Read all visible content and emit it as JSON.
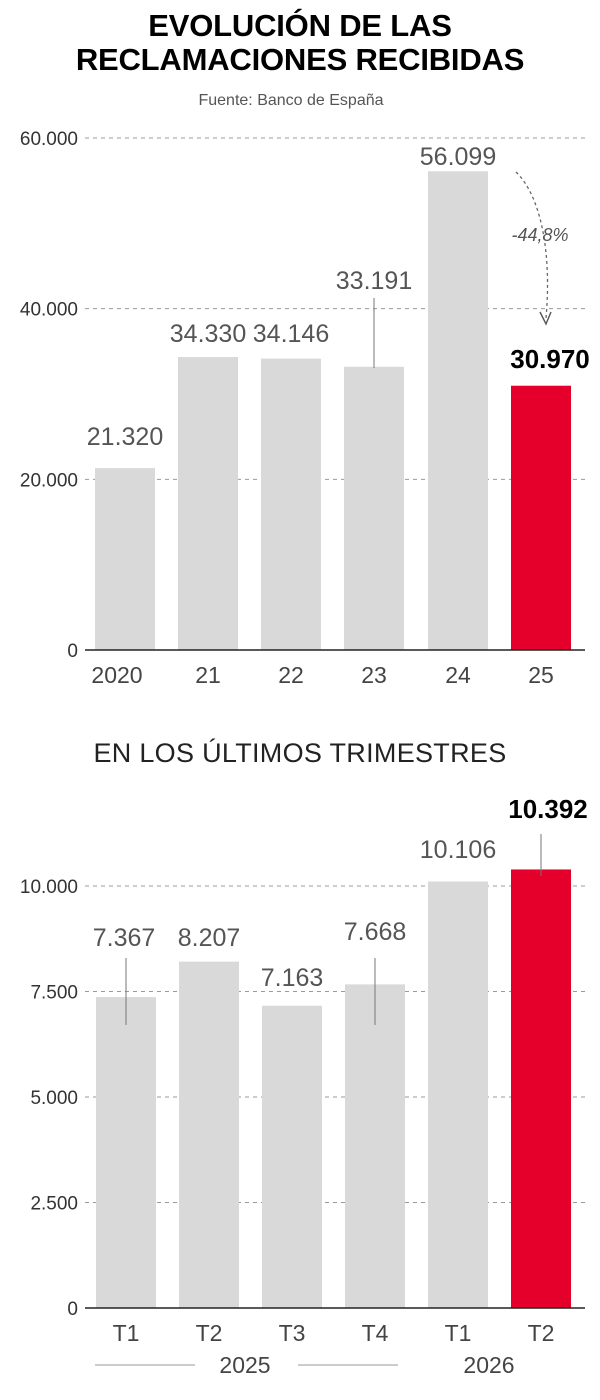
{
  "header": {
    "title_line1": "EVOLUCIÓN DE LAS",
    "title_line2": "RECLAMACIONES RECIBIDAS",
    "source": "Fuente: Banco de España"
  },
  "colors": {
    "bar": "#d9d9d9",
    "highlight": "#e4002b",
    "text": "#111111"
  },
  "chart_data": [
    {
      "type": "bar",
      "title": "EVOLUCIÓN DE LAS RECLAMACIONES RECIBIDAS",
      "categories": [
        "2020",
        "21",
        "22",
        "23",
        "24",
        "25"
      ],
      "values": [
        21320,
        34330,
        34146,
        33191,
        56099,
        30970
      ],
      "value_labels": [
        "21.320",
        "34.330",
        "34.146",
        "33.191",
        "56.099",
        "30.970"
      ],
      "highlight_index": 5,
      "yticks": [
        0,
        20000,
        40000,
        60000
      ],
      "ytick_labels": [
        "0",
        "20.000",
        "40.000",
        "60.000"
      ],
      "ylim": [
        0,
        60000
      ],
      "grid": true,
      "annotation": {
        "text": "-44,8%",
        "from_index": 4,
        "to_index": 5
      }
    },
    {
      "type": "bar",
      "title": "EN LOS ÚLTIMOS TRIMESTRES",
      "categories": [
        "T1",
        "T2",
        "T3",
        "T4",
        "T1",
        "T2"
      ],
      "groups": [
        {
          "label": "2025",
          "count": 4
        },
        {
          "label": "2026",
          "count": 2
        }
      ],
      "values": [
        7367,
        8207,
        7163,
        7668,
        10106,
        10392
      ],
      "value_labels": [
        "7.367",
        "8.207",
        "7.163",
        "7.668",
        "10.106",
        "10.392"
      ],
      "highlight_index": 5,
      "yticks": [
        0,
        2500,
        5000,
        7500,
        10000
      ],
      "ytick_labels": [
        "0",
        "2.500",
        "5.000",
        "7.500",
        "10.000"
      ],
      "ylim": [
        0,
        10000
      ],
      "grid": true
    }
  ]
}
